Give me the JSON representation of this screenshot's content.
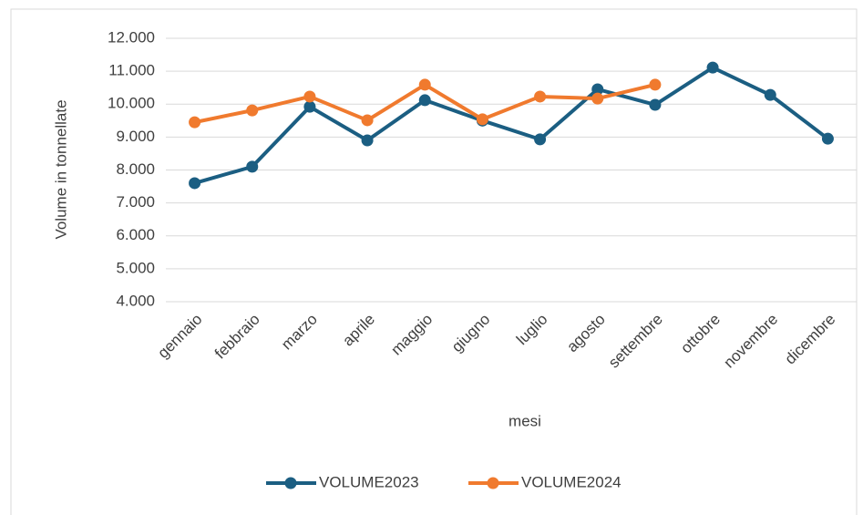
{
  "chart_data": {
    "type": "line",
    "x_label": "mesi",
    "y_label": "Volume in tonnellate",
    "categories": [
      "gennaio",
      "febbraio",
      "marzo",
      "aprile",
      "maggio",
      "giugno",
      "luglio",
      "agosto",
      "settembre",
      "ottobre",
      "novembre",
      "dicembre"
    ],
    "series": [
      {
        "name": "VOLUME2023",
        "color": "#1b5e82",
        "values": [
          7600,
          8100,
          9920,
          8900,
          10120,
          9500,
          8930,
          10450,
          9980,
          11110,
          10280,
          8950
        ]
      },
      {
        "name": "VOLUME2024",
        "color": "#f07a2e",
        "values": [
          9450,
          9810,
          10230,
          9510,
          10590,
          9540,
          10230,
          10170,
          10590,
          null,
          null,
          null
        ]
      }
    ],
    "ylim": [
      4000,
      12000
    ],
    "yticks": [
      {
        "value": 4000,
        "label": "4.000"
      },
      {
        "value": 5000,
        "label": "5.000"
      },
      {
        "value": 6000,
        "label": "6.000"
      },
      {
        "value": 7000,
        "label": "7.000"
      },
      {
        "value": 8000,
        "label": "8.000"
      },
      {
        "value": 9000,
        "label": "9.000"
      },
      {
        "value": 10000,
        "label": "10.000"
      },
      {
        "value": 11000,
        "label": "11.000"
      },
      {
        "value": 12000,
        "label": "12.000"
      }
    ],
    "grid": true,
    "legend": "bottom"
  }
}
